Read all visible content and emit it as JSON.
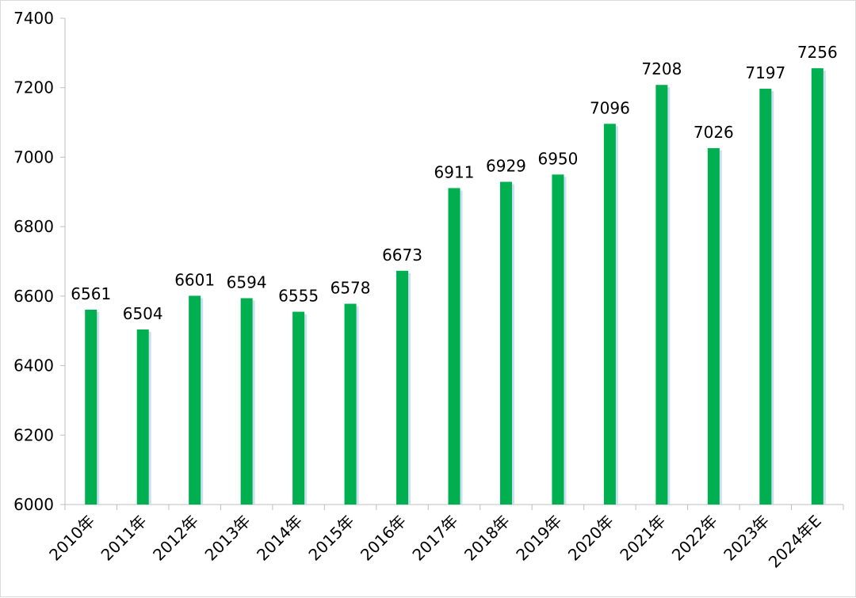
{
  "chart_data": {
    "type": "bar",
    "title": "",
    "xlabel": "",
    "ylabel": "",
    "categories": [
      "2010年",
      "2011年",
      "2012年",
      "2013年",
      "2014年",
      "2015年",
      "2016年",
      "2017年",
      "2018年",
      "2019年",
      "2020年",
      "2021年",
      "2022年",
      "2023年",
      "2024年E"
    ],
    "values": [
      6561,
      6504,
      6601,
      6594,
      6555,
      6578,
      6673,
      6911,
      6929,
      6950,
      7096,
      7208,
      7026,
      7197,
      7256
    ],
    "ylim": [
      6000,
      7400
    ],
    "yticks": [
      6000,
      6200,
      6400,
      6600,
      6800,
      7000,
      7200,
      7400
    ],
    "grid": false,
    "legend": "none",
    "colors": {
      "bar": "#00b050",
      "shadow": "#bdd7ee",
      "axis": "#bfbfbf",
      "text": "#000000"
    }
  }
}
